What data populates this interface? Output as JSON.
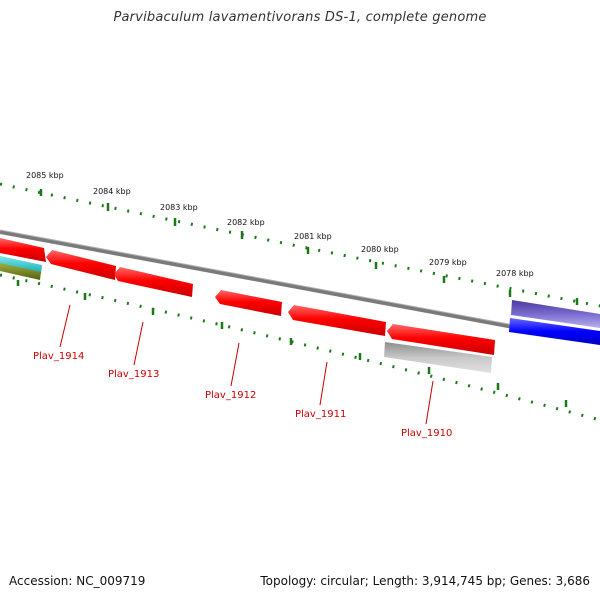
{
  "title": "Parvibaculum lavamentivorans DS-1, complete genome",
  "footer": {
    "accession": "Accession: NC_009719",
    "summary": "Topology: circular; Length: 3,914,745 bp; Genes: 3,686"
  },
  "ticks": [
    {
      "label": "2085 kbp"
    },
    {
      "label": "2084 kbp"
    },
    {
      "label": "2083 kbp"
    },
    {
      "label": "2082 kbp"
    },
    {
      "label": "2081 kbp"
    },
    {
      "label": "2080 kbp"
    },
    {
      "label": "2079 kbp"
    },
    {
      "label": "2078 kbp"
    }
  ],
  "genes": [
    {
      "label": "Plav_1914",
      "color": "#ff0000"
    },
    {
      "label": "Plav_1913",
      "color": "#ff0000"
    },
    {
      "label": "Plav_1912",
      "color": "#ff0000"
    },
    {
      "label": "Plav_1911",
      "color": "#ff0000"
    },
    {
      "label": "Plav_1910",
      "color": "#ff0000"
    }
  ],
  "colors": {
    "backbone": "#7a7a7a",
    "tick_dots": "#1a7a1a",
    "gene_forward": "#ff0000",
    "gene_gray": "#b8b8b8",
    "feature_blue": "#0000ff",
    "feature_purple": "#6a5acd",
    "feature_cyan": "#20c0c0",
    "feature_olive": "#7a8a20"
  }
}
